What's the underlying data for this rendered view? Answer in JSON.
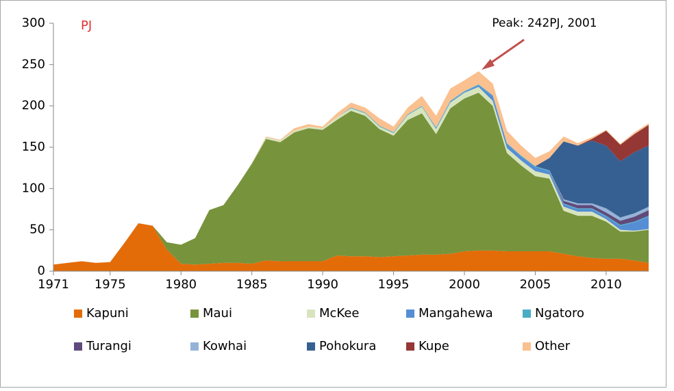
{
  "chart_data": {
    "type": "stacked_area",
    "unit_label": "PJ",
    "annotation": "Peak: 242PJ, 2001",
    "x": [
      1971,
      1972,
      1973,
      1974,
      1975,
      1976,
      1977,
      1978,
      1979,
      1980,
      1981,
      1982,
      1983,
      1984,
      1985,
      1986,
      1987,
      1988,
      1989,
      1990,
      1991,
      1992,
      1993,
      1994,
      1995,
      1996,
      1997,
      1998,
      1999,
      2000,
      2001,
      2002,
      2003,
      2004,
      2005,
      2006,
      2007,
      2008,
      2009,
      2010,
      2011,
      2012,
      2013
    ],
    "xlim": [
      1971,
      2013
    ],
    "xticks": [
      1971,
      1975,
      1980,
      1985,
      1990,
      1995,
      2000,
      2005,
      2010
    ],
    "ylim": [
      0,
      300
    ],
    "yticks": [
      0,
      50,
      100,
      150,
      200,
      250,
      300
    ],
    "series": [
      {
        "name": "Kapuni",
        "color": "#e36c09",
        "values": [
          8,
          10,
          12,
          10,
          11,
          34,
          58,
          55,
          26,
          9,
          8,
          9,
          10,
          10,
          9,
          13,
          12,
          12,
          12,
          12,
          19,
          18,
          18,
          17,
          18,
          19,
          20,
          20,
          21,
          24,
          25,
          25,
          24,
          24,
          24,
          24,
          21,
          18,
          16,
          15,
          15,
          13,
          10
        ]
      },
      {
        "name": "Maui",
        "color": "#77933c",
        "values": [
          0,
          0,
          0,
          0,
          0,
          0,
          0,
          0,
          9,
          23,
          32,
          65,
          70,
          94,
          121,
          147,
          144,
          156,
          161,
          159,
          164,
          176,
          170,
          155,
          146,
          164,
          171,
          146,
          176,
          185,
          191,
          175,
          119,
          104,
          91,
          88,
          52,
          49,
          51,
          45,
          33,
          35,
          40
        ]
      },
      {
        "name": "McKee",
        "color": "#d7e4bd",
        "values": [
          0,
          0,
          0,
          0,
          0,
          0,
          0,
          0,
          0,
          0,
          0,
          0,
          0,
          0,
          1,
          2,
          2,
          2,
          2,
          2,
          3,
          3,
          3,
          3,
          3,
          6,
          8,
          6,
          7,
          7,
          7,
          6,
          6,
          6,
          6,
          5,
          5,
          5,
          5,
          3,
          2,
          1,
          1
        ]
      },
      {
        "name": "Mangahewa",
        "color": "#558ed5",
        "values": [
          0,
          0,
          0,
          0,
          0,
          0,
          0,
          0,
          0,
          0,
          0,
          0,
          0,
          0,
          0,
          0,
          0,
          0,
          0,
          0,
          0,
          0,
          0,
          0,
          0,
          0,
          0,
          1,
          1,
          1,
          2,
          6,
          5,
          5,
          5,
          4,
          3,
          3,
          3,
          3,
          5,
          10,
          15
        ]
      },
      {
        "name": "Ngatoro",
        "color": "#4bacc6",
        "values": [
          0,
          0,
          0,
          0,
          0,
          0,
          0,
          0,
          0,
          0,
          0,
          0,
          0,
          0,
          0,
          0,
          0,
          0,
          0,
          0,
          0,
          1,
          1,
          1,
          1,
          1,
          1,
          1,
          1,
          1,
          1,
          1,
          1,
          1,
          1,
          1,
          1,
          1,
          1,
          1,
          1,
          1,
          1
        ]
      },
      {
        "name": "Turangi",
        "color": "#604a7b",
        "values": [
          0,
          0,
          0,
          0,
          0,
          0,
          0,
          0,
          0,
          0,
          0,
          0,
          0,
          0,
          0,
          0,
          0,
          0,
          0,
          0,
          0,
          0,
          0,
          0,
          0,
          0,
          0,
          0,
          0,
          0,
          0,
          0,
          0,
          0,
          0,
          0,
          3,
          4,
          4,
          4,
          5,
          6,
          7
        ]
      },
      {
        "name": "Kowhai",
        "color": "#95b3d7",
        "values": [
          0,
          0,
          0,
          0,
          0,
          0,
          0,
          0,
          0,
          0,
          0,
          0,
          0,
          0,
          0,
          0,
          0,
          0,
          0,
          0,
          0,
          0,
          0,
          0,
          0,
          0,
          0,
          0,
          0,
          0,
          0,
          0,
          0,
          0,
          0,
          0,
          2,
          2,
          2,
          5,
          4,
          4,
          4
        ]
      },
      {
        "name": "Pohokura",
        "color": "#376092",
        "values": [
          0,
          0,
          0,
          0,
          0,
          0,
          0,
          0,
          0,
          0,
          0,
          0,
          0,
          0,
          0,
          0,
          0,
          0,
          0,
          0,
          0,
          0,
          0,
          0,
          0,
          0,
          0,
          0,
          0,
          0,
          0,
          0,
          0,
          0,
          0,
          15,
          70,
          70,
          76,
          76,
          68,
          74,
          74
        ]
      },
      {
        "name": "Kupe",
        "color": "#953735",
        "values": [
          0,
          0,
          0,
          0,
          0,
          0,
          0,
          0,
          0,
          0,
          0,
          0,
          0,
          0,
          0,
          0,
          0,
          0,
          0,
          0,
          0,
          0,
          0,
          0,
          0,
          0,
          0,
          0,
          0,
          0,
          0,
          0,
          0,
          0,
          0,
          0,
          0,
          0,
          2,
          18,
          20,
          22,
          25
        ]
      },
      {
        "name": "Other",
        "color": "#fac090",
        "values": [
          0,
          0,
          0,
          0,
          0,
          0,
          0,
          0,
          0,
          0,
          0,
          0,
          0,
          0,
          0,
          1,
          1,
          3,
          3,
          2,
          5,
          6,
          6,
          9,
          7,
          8,
          12,
          14,
          15,
          13,
          16,
          14,
          15,
          12,
          10,
          8,
          6,
          3,
          2,
          1,
          1,
          2,
          2
        ]
      }
    ]
  }
}
